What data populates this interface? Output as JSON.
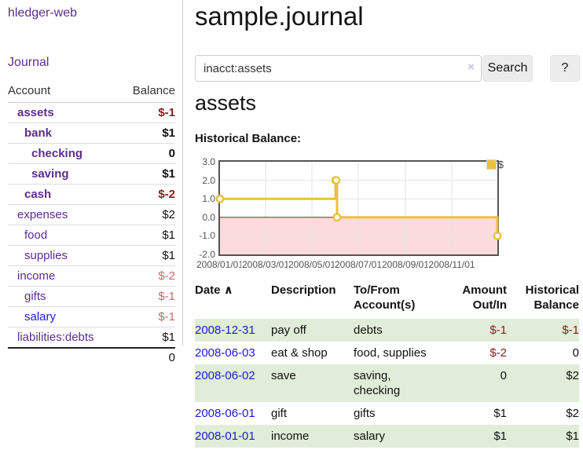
{
  "app": {
    "brand": "hledger-web"
  },
  "sidebar": {
    "nav_journal": "Journal",
    "accounts_table": {
      "headers": {
        "account": "Account",
        "balance": "Balance"
      },
      "rows": [
        {
          "name": "assets",
          "depth": 1,
          "bold": true,
          "balance": "$-1"
        },
        {
          "name": "bank",
          "depth": 2,
          "bold": true,
          "balance": "$1"
        },
        {
          "name": "checking",
          "depth": 3,
          "bold": true,
          "balance": "0"
        },
        {
          "name": "saving",
          "depth": 3,
          "bold": true,
          "balance": "$1"
        },
        {
          "name": "cash",
          "depth": 2,
          "bold": true,
          "balance": "$-2"
        },
        {
          "name": "expenses",
          "depth": 1,
          "bold": false,
          "balance": "$2"
        },
        {
          "name": "food",
          "depth": 2,
          "bold": false,
          "balance": "$1"
        },
        {
          "name": "supplies",
          "depth": 2,
          "bold": false,
          "balance": "$1"
        },
        {
          "name": "income",
          "depth": 1,
          "bold": false,
          "balance": "$-2"
        },
        {
          "name": "gifts",
          "depth": 2,
          "bold": false,
          "balance": "$-1"
        },
        {
          "name": "salary",
          "depth": 2,
          "bold": false,
          "balance": "$-1"
        },
        {
          "name": "liabilities:debts",
          "depth": 1,
          "bold": false,
          "balance": "$1"
        }
      ],
      "total": "0"
    }
  },
  "header": {
    "title": "sample.journal"
  },
  "search": {
    "value": "inacct:assets",
    "clear_icon": "×",
    "button_label": "Search",
    "help_label": "?"
  },
  "account_page": {
    "heading": "assets",
    "chart_title": "Historical Balance:"
  },
  "chart_data": {
    "type": "line",
    "style": "step-after",
    "title": "Historical Balance:",
    "series": [
      {
        "name": "$",
        "color": "#e9c13f",
        "points": [
          [
            "2008-01-01",
            1
          ],
          [
            "2008-06-01",
            2
          ],
          [
            "2008-06-02",
            2
          ],
          [
            "2008-06-03",
            0
          ],
          [
            "2008-12-31",
            -1
          ]
        ]
      }
    ],
    "x_range": [
      "2008-01-01",
      "2008-12-31"
    ],
    "ylim": [
      -2,
      3
    ],
    "ytick_values": [
      3,
      2,
      1,
      0,
      -1,
      -2
    ],
    "ytick_labels": [
      "3.0",
      "2.0",
      "1.0",
      "0.0",
      "-1.0",
      "-2.0"
    ],
    "xticks": [
      "2008/01/01",
      "2008/03/01",
      "2008/05/01",
      "2008/07/01",
      "2008/09/01",
      "2008/11/01"
    ],
    "grid": true,
    "grid_color": "#e4e4e4",
    "negative_region_color": "#fbdbdb",
    "zero_line_color": "#8b2020",
    "legend": {
      "position": "top-right",
      "label": "$",
      "swatch_color": "#edc240"
    }
  },
  "register_table": {
    "headers": {
      "date": "Date",
      "sort_caret": "∧",
      "description": "Description",
      "accounts_line1": "To/From",
      "accounts_line2": "Account(s)",
      "amount_line1": "Amount",
      "amount_line2": "Out/In",
      "balance_line1": "Historical",
      "balance_line2": "Balance"
    },
    "rows": [
      {
        "date": "2008-12-31",
        "description": "pay off",
        "accounts": "debts",
        "amount": "$-1",
        "balance": "$-1"
      },
      {
        "date": "2008-06-03",
        "description": "eat & shop",
        "accounts": "food, supplies",
        "amount": "$-2",
        "balance": "0"
      },
      {
        "date": "2008-06-02",
        "description": "save",
        "accounts": "saving, checking",
        "amount": "0",
        "balance": "$2"
      },
      {
        "date": "2008-06-01",
        "description": "gift",
        "accounts": "gifts",
        "amount": "$1",
        "balance": "$2"
      },
      {
        "date": "2008-01-01",
        "description": "income",
        "accounts": "salary",
        "amount": "$1",
        "balance": "$1"
      }
    ]
  }
}
